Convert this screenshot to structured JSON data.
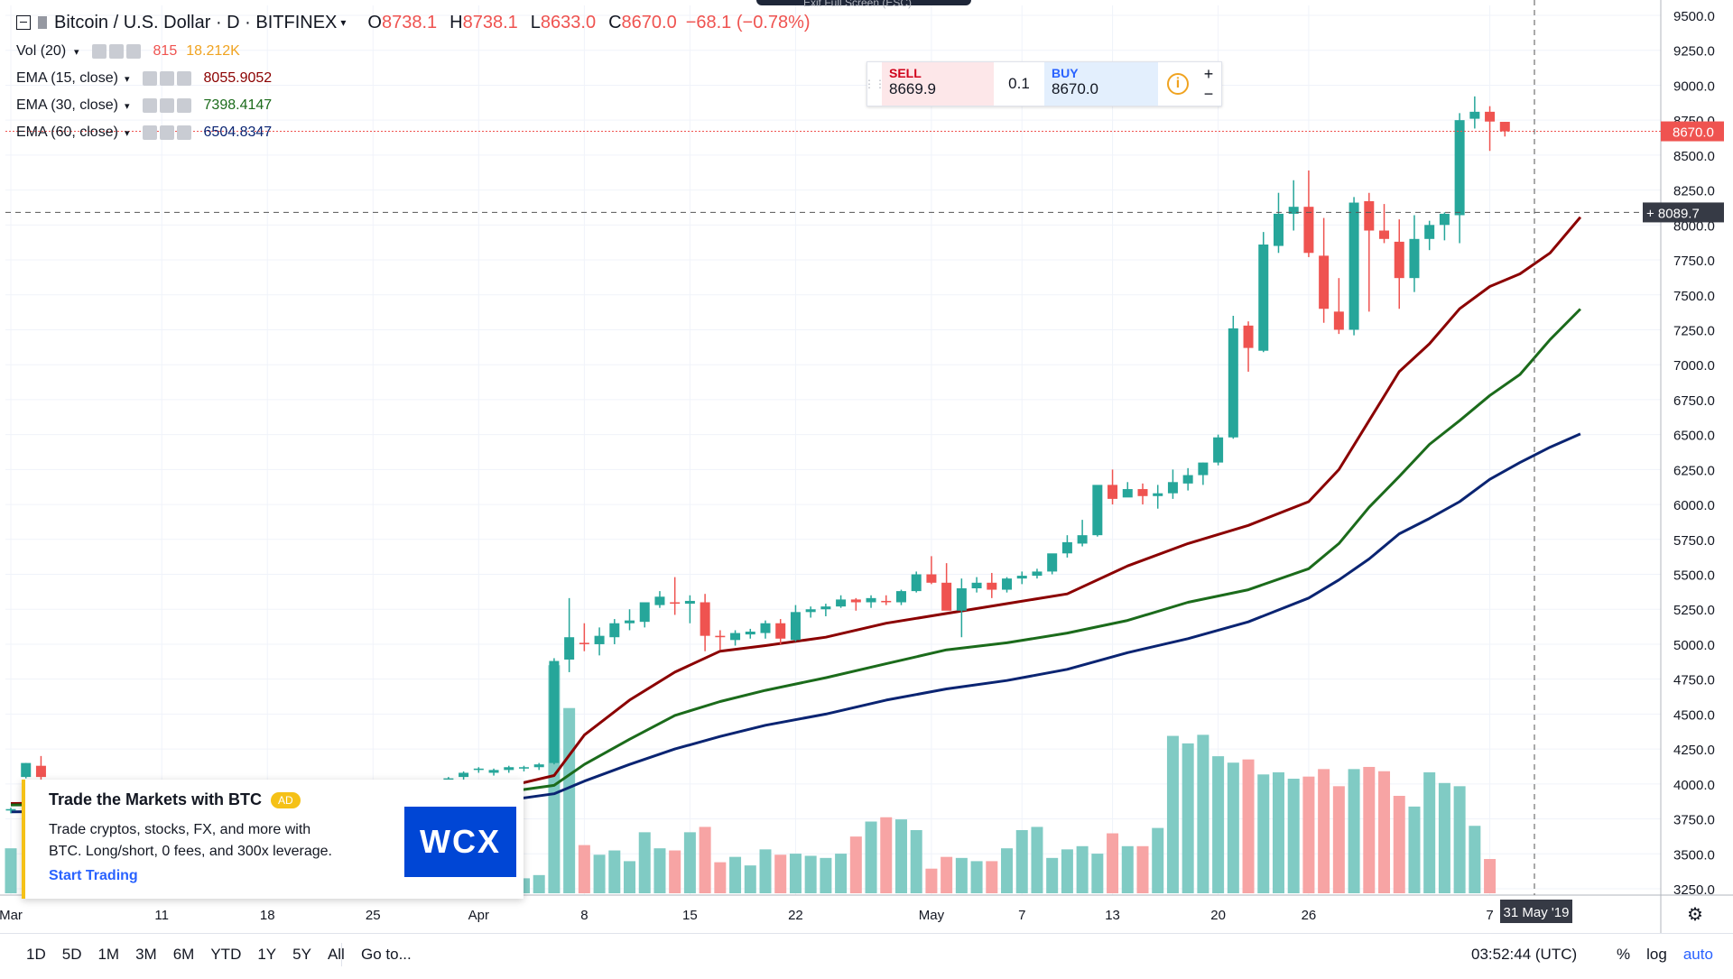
{
  "header": {
    "symbol": "Bitcoin / U.S. Dollar · D · BITFINEX",
    "open_label": "O",
    "open_value": "8738.1",
    "high_label": "H",
    "high_value": "8738.1",
    "low_label": "L",
    "low_value": "8633.0",
    "close_label": "C",
    "close_value": "8670.0",
    "change": "−68.1 (−0.78%)",
    "exit_fullscreen": "Exit Full Screen (ESC)"
  },
  "legend": {
    "vol": {
      "name": "Vol (20)",
      "value1": "815",
      "value2": "18.212K"
    },
    "ema15": {
      "name": "EMA (15, close)",
      "value": "8055.9052"
    },
    "ema30": {
      "name": "EMA (30, close)",
      "value": "7398.4147"
    },
    "ema60": {
      "name": "EMA (60, close)",
      "value": "6504.8347"
    }
  },
  "trade": {
    "sell_label": "SELL",
    "sell_price": "8669.9",
    "quantity": "0.1",
    "buy_label": "BUY",
    "buy_price": "8670.0",
    "info": "i",
    "plus": "+",
    "minus": "−"
  },
  "ad": {
    "title": "Trade the Markets with BTC",
    "badge": "AD",
    "description": "Trade cryptos, stocks, FX, and more with BTC. Long/short, 0 fees, and 300x leverage.",
    "cta": "Start Trading",
    "logo": "WCX"
  },
  "bottom": {
    "ranges": [
      "1D",
      "5D",
      "1M",
      "3M",
      "6M",
      "YTD",
      "1Y",
      "5Y",
      "All"
    ],
    "goto": "Go to...",
    "time": "03:52:44 (UTC)",
    "percent": "%",
    "log": "log",
    "auto": "auto"
  },
  "colors": {
    "up": "#26a69a",
    "down": "#ef5350",
    "vol_up": "#80cbc4",
    "vol_down": "#f7a4a4",
    "ema15": "#8b0000",
    "ema30": "#1b6b1b",
    "ema60": "#0a2472",
    "grid": "#f0f3fa",
    "axis_text": "#131722"
  },
  "chart_data": {
    "type": "candlestick",
    "title": "Bitcoin / U.S. Dollar · D · BITFINEX",
    "ylim": [
      3200,
      9500
    ],
    "y_ticks": [
      "9500.0",
      "9250.0",
      "9000.0",
      "8750.0",
      "8500.0",
      "8250.0",
      "8000.0",
      "7750.0",
      "7500.0",
      "7250.0",
      "7000.0",
      "6750.0",
      "6500.0",
      "6250.0",
      "6000.0",
      "5750.0",
      "5500.0",
      "5250.0",
      "5000.0",
      "4750.0",
      "4500.0",
      "4250.0",
      "4000.0",
      "3750.0",
      "3500.0",
      "3250.0"
    ],
    "x_ticks": [
      "Mar",
      "11",
      "18",
      "25",
      "Apr",
      "8",
      "15",
      "22",
      "May",
      "7",
      "13",
      "20",
      "26",
      "7"
    ],
    "x_tick_day_index": [
      0,
      10,
      17,
      24,
      31,
      38,
      45,
      52,
      61,
      67,
      73,
      80,
      86,
      98
    ],
    "x_axis_hover_label": "31 May '19",
    "last_price_label": "8670.0",
    "crosshair_price_label": "8089.7",
    "candles_ohlc": [
      [
        3810,
        3830,
        3790,
        3820
      ],
      [
        4050,
        4150,
        4040,
        4150
      ],
      [
        4130,
        4200,
        4020,
        4050
      ],
      [
        3900,
        3950,
        3860,
        3910
      ],
      [
        3870,
        3920,
        3850,
        3880
      ],
      [
        3850,
        3880,
        3830,
        3860
      ],
      [
        3860,
        3890,
        3840,
        3870
      ],
      [
        3870,
        3900,
        3850,
        3880
      ],
      [
        3860,
        3880,
        3840,
        3870
      ],
      [
        3870,
        3890,
        3850,
        3880
      ],
      [
        3880,
        3900,
        3860,
        3890
      ],
      [
        3890,
        3910,
        3870,
        3900
      ],
      [
        3900,
        3930,
        3880,
        3920
      ],
      [
        3920,
        3950,
        3900,
        3940
      ],
      [
        3940,
        3960,
        3920,
        3950
      ],
      [
        3950,
        3970,
        3930,
        3960
      ],
      [
        3960,
        3990,
        3950,
        3970
      ],
      [
        3910,
        3990,
        3890,
        3970
      ],
      [
        3950,
        3980,
        3930,
        3960
      ],
      [
        3940,
        3970,
        3920,
        3960
      ],
      [
        3960,
        3990,
        3940,
        3980
      ],
      [
        3970,
        3990,
        3950,
        3980
      ],
      [
        3980,
        4010,
        3960,
        3960
      ],
      [
        3960,
        3990,
        3940,
        3980
      ],
      [
        3980,
        4000,
        3960,
        3990
      ],
      [
        3990,
        4010,
        3970,
        4000
      ],
      [
        3950,
        3980,
        3930,
        3960
      ],
      [
        3980,
        4010,
        3960,
        4000
      ],
      [
        4000,
        4030,
        3980,
        4020
      ],
      [
        4020,
        4050,
        4000,
        4040
      ],
      [
        4050,
        4090,
        4030,
        4080
      ],
      [
        4100,
        4120,
        4080,
        4110
      ],
      [
        4080,
        4110,
        4060,
        4100
      ],
      [
        4100,
        4130,
        4080,
        4120
      ],
      [
        4110,
        4130,
        4090,
        4120
      ],
      [
        4120,
        4150,
        4100,
        4140
      ],
      [
        4150,
        4900,
        4140,
        4880
      ],
      [
        4890,
        5330,
        4800,
        5050
      ],
      [
        5010,
        5150,
        4950,
        5000
      ],
      [
        5000,
        5120,
        4920,
        5060
      ],
      [
        5050,
        5180,
        5000,
        5150
      ],
      [
        5150,
        5250,
        5100,
        5170
      ],
      [
        5160,
        5300,
        5120,
        5300
      ],
      [
        5280,
        5380,
        5260,
        5340
      ],
      [
        5300,
        5480,
        5210,
        5290
      ],
      [
        5290,
        5350,
        5150,
        5310
      ],
      [
        5300,
        5360,
        4950,
        5060
      ],
      [
        5060,
        5100,
        4960,
        5050
      ],
      [
        5030,
        5100,
        4990,
        5080
      ],
      [
        5070,
        5110,
        5040,
        5090
      ],
      [
        5080,
        5170,
        5040,
        5150
      ],
      [
        5150,
        5180,
        5000,
        5040
      ],
      [
        5030,
        5280,
        5020,
        5230
      ],
      [
        5230,
        5270,
        5190,
        5250
      ],
      [
        5250,
        5290,
        5200,
        5270
      ],
      [
        5270,
        5350,
        5260,
        5320
      ],
      [
        5320,
        5330,
        5240,
        5300
      ],
      [
        5300,
        5350,
        5260,
        5330
      ],
      [
        5310,
        5350,
        5280,
        5300
      ],
      [
        5300,
        5390,
        5280,
        5380
      ],
      [
        5380,
        5520,
        5370,
        5500
      ],
      [
        5500,
        5630,
        5430,
        5440
      ],
      [
        5440,
        5580,
        5270,
        5240
      ],
      [
        5240,
        5470,
        5050,
        5400
      ],
      [
        5400,
        5480,
        5370,
        5440
      ],
      [
        5440,
        5510,
        5330,
        5390
      ],
      [
        5390,
        5480,
        5370,
        5470
      ],
      [
        5470,
        5520,
        5430,
        5490
      ],
      [
        5490,
        5540,
        5470,
        5520
      ],
      [
        5520,
        5610,
        5500,
        5650
      ],
      [
        5650,
        5780,
        5620,
        5730
      ],
      [
        5720,
        5890,
        5700,
        5780
      ],
      [
        5780,
        6000,
        5770,
        6140
      ],
      [
        6140,
        6250,
        6000,
        6040
      ],
      [
        6050,
        6160,
        6060,
        6110
      ],
      [
        6110,
        6150,
        6000,
        6060
      ],
      [
        6060,
        6140,
        5970,
        6080
      ],
      [
        6080,
        6250,
        6040,
        6160
      ],
      [
        6150,
        6260,
        6100,
        6210
      ],
      [
        6210,
        6300,
        6140,
        6300
      ],
      [
        6300,
        6500,
        6280,
        6480
      ],
      [
        6480,
        7350,
        6470,
        7260
      ],
      [
        7280,
        7310,
        6950,
        7120
      ],
      [
        7100,
        7950,
        7090,
        7860
      ],
      [
        7850,
        8230,
        7800,
        8080
      ],
      [
        8080,
        8320,
        7960,
        8130
      ],
      [
        8130,
        8390,
        7770,
        7800
      ],
      [
        7780,
        8050,
        7300,
        7400
      ],
      [
        7380,
        7620,
        7220,
        7250
      ],
      [
        7250,
        8200,
        7210,
        8160
      ],
      [
        8170,
        8230,
        7380,
        7960
      ],
      [
        7960,
        8150,
        7870,
        7900
      ],
      [
        7880,
        8040,
        7400,
        7620
      ],
      [
        7620,
        8070,
        7520,
        7900
      ],
      [
        7900,
        8030,
        7820,
        8000
      ],
      [
        8000,
        8090,
        7890,
        8080
      ],
      [
        8070,
        8800,
        7870,
        8750
      ],
      [
        8760,
        8920,
        8690,
        8810
      ],
      [
        8810,
        8850,
        8530,
        8740
      ],
      [
        8738,
        8738,
        8633,
        8670
      ]
    ],
    "candle_day_index_start": 0,
    "volume_series": {
      "name": "Vol (20)",
      "values": [
        42,
        0,
        0,
        0,
        0,
        0,
        0,
        0,
        0,
        0,
        0,
        0,
        0,
        0,
        0,
        0,
        0,
        0,
        0,
        0,
        0,
        0,
        0,
        0,
        0,
        0,
        0,
        0,
        0,
        0,
        0,
        30,
        26,
        23,
        14,
        17,
        213,
        173,
        45,
        36,
        40,
        30,
        57,
        42,
        40,
        57,
        62,
        29,
        34,
        26,
        41,
        36,
        37,
        35,
        33,
        37,
        53,
        67,
        71,
        69,
        59,
        23,
        34,
        33,
        30,
        30,
        42,
        59,
        62,
        33,
        41,
        44,
        37,
        56,
        44,
        44,
        61,
        147,
        140,
        148,
        128,
        122,
        125,
        111,
        113,
        107,
        109,
        116,
        100,
        116,
        118,
        114,
        91,
        81,
        113,
        103,
        100,
        63,
        32
      ],
      "colors_up_down": "per candle direction"
    },
    "series": [
      {
        "name": "EMA (15, close)",
        "color_key": "ema15",
        "last": 8055.9052,
        "points": [
          [
            0,
            3860
          ],
          [
            10,
            3870
          ],
          [
            20,
            3900
          ],
          [
            31,
            3960
          ],
          [
            34,
            4010
          ],
          [
            36,
            4060
          ],
          [
            38,
            4350
          ],
          [
            41,
            4600
          ],
          [
            44,
            4800
          ],
          [
            47,
            4950
          ],
          [
            50,
            4990
          ],
          [
            54,
            5050
          ],
          [
            58,
            5150
          ],
          [
            62,
            5220
          ],
          [
            66,
            5290
          ],
          [
            70,
            5360
          ],
          [
            74,
            5560
          ],
          [
            78,
            5720
          ],
          [
            82,
            5850
          ],
          [
            86,
            6020
          ],
          [
            88,
            6250
          ],
          [
            90,
            6600
          ],
          [
            92,
            6950
          ],
          [
            94,
            7150
          ],
          [
            96,
            7400
          ],
          [
            98,
            7560
          ],
          [
            100,
            7650
          ],
          [
            102,
            7800
          ],
          [
            104,
            8055.9
          ]
        ]
      },
      {
        "name": "EMA (30, close)",
        "color_key": "ema30",
        "last": 7398.4147,
        "points": [
          [
            0,
            3850
          ],
          [
            10,
            3860
          ],
          [
            20,
            3880
          ],
          [
            31,
            3930
          ],
          [
            34,
            3960
          ],
          [
            36,
            3990
          ],
          [
            38,
            4140
          ],
          [
            41,
            4320
          ],
          [
            44,
            4490
          ],
          [
            47,
            4590
          ],
          [
            50,
            4670
          ],
          [
            54,
            4760
          ],
          [
            58,
            4860
          ],
          [
            62,
            4960
          ],
          [
            66,
            5010
          ],
          [
            70,
            5080
          ],
          [
            74,
            5170
          ],
          [
            78,
            5300
          ],
          [
            82,
            5390
          ],
          [
            86,
            5540
          ],
          [
            88,
            5720
          ],
          [
            90,
            5980
          ],
          [
            92,
            6200
          ],
          [
            94,
            6430
          ],
          [
            96,
            6600
          ],
          [
            98,
            6780
          ],
          [
            100,
            6930
          ],
          [
            102,
            7180
          ],
          [
            104,
            7398.4
          ]
        ]
      },
      {
        "name": "EMA (60, close)",
        "color_key": "ema60",
        "last": 6504.8347,
        "points": [
          [
            0,
            3800
          ],
          [
            10,
            3810
          ],
          [
            20,
            3830
          ],
          [
            31,
            3880
          ],
          [
            34,
            3900
          ],
          [
            36,
            3930
          ],
          [
            38,
            4020
          ],
          [
            41,
            4140
          ],
          [
            44,
            4250
          ],
          [
            47,
            4340
          ],
          [
            50,
            4420
          ],
          [
            54,
            4500
          ],
          [
            58,
            4600
          ],
          [
            62,
            4680
          ],
          [
            66,
            4740
          ],
          [
            70,
            4820
          ],
          [
            74,
            4940
          ],
          [
            78,
            5040
          ],
          [
            82,
            5160
          ],
          [
            86,
            5330
          ],
          [
            88,
            5460
          ],
          [
            90,
            5610
          ],
          [
            92,
            5790
          ],
          [
            94,
            5900
          ],
          [
            96,
            6020
          ],
          [
            98,
            6180
          ],
          [
            100,
            6300
          ],
          [
            102,
            6410
          ],
          [
            104,
            6504.8
          ]
        ]
      }
    ]
  }
}
